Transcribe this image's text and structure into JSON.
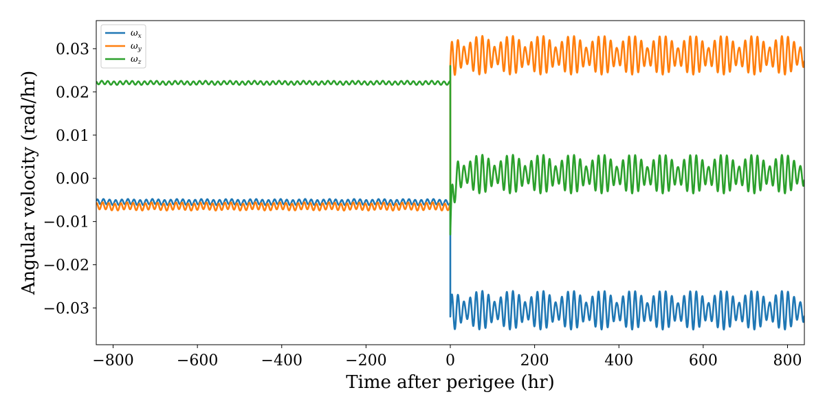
{
  "chart_data": {
    "type": "line",
    "xlabel": "Time after perigee (hr)",
    "ylabel": "Angular velocity (rad/hr)",
    "xlim": [
      -840,
      840
    ],
    "ylim": [
      -0.0385,
      0.0365
    ],
    "xticks": [
      -800,
      -600,
      -400,
      -200,
      0,
      200,
      400,
      600,
      800
    ],
    "xtick_labels": [
      "−800",
      "−600",
      "−400",
      "−200",
      "0",
      "200",
      "400",
      "600",
      "800"
    ],
    "yticks": [
      -0.03,
      -0.02,
      -0.01,
      0.0,
      0.01,
      0.02,
      0.03
    ],
    "ytick_labels": [
      "−0.03",
      "−0.02",
      "−0.01",
      "0.00",
      "0.01",
      "0.02",
      "0.03"
    ],
    "grid": false,
    "legend_position": "top-left",
    "series": [
      {
        "name": "ω",
        "subscript": "x",
        "color": "#1f77b4",
        "before_perigee": {
          "mean": -0.0055,
          "amplitude": 0.0006,
          "period_hr": 14.5
        },
        "after_perigee": {
          "mean": -0.0305,
          "amplitude": 0.0045,
          "period_hr": 14.5,
          "beat_period_hr": 72
        },
        "points": [
          [
            -840,
            -0.0058
          ],
          [
            -600,
            -0.0054
          ],
          [
            -400,
            -0.0055
          ],
          [
            -200,
            -0.0054
          ],
          [
            -5,
            -0.0055
          ],
          [
            0,
            -0.0055
          ],
          [
            0,
            -0.032
          ],
          [
            200,
            -0.0305
          ],
          [
            400,
            -0.0305
          ],
          [
            600,
            -0.0305
          ],
          [
            840,
            -0.035
          ]
        ]
      },
      {
        "name": "ω",
        "subscript": "y",
        "color": "#ff7f0e",
        "before_perigee": {
          "mean": -0.0065,
          "amplitude": 0.0008,
          "period_hr": 14.5
        },
        "after_perigee": {
          "mean": 0.0285,
          "amplitude": 0.0045,
          "period_hr": 14.5,
          "beat_period_hr": 72
        },
        "points": [
          [
            -840,
            -0.007
          ],
          [
            -600,
            -0.0065
          ],
          [
            -400,
            -0.0065
          ],
          [
            -200,
            -0.0065
          ],
          [
            -5,
            -0.0065
          ],
          [
            0,
            -0.0065
          ],
          [
            0,
            0.026
          ],
          [
            200,
            0.0285
          ],
          [
            400,
            0.0285
          ],
          [
            600,
            0.0285
          ],
          [
            840,
            0.023
          ]
        ]
      },
      {
        "name": "ω",
        "subscript": "z",
        "color": "#2ca02c",
        "before_perigee": {
          "mean": 0.0221,
          "amplitude": 0.0004,
          "period_hr": 14.5
        },
        "after_perigee": {
          "mean": 0.001,
          "amplitude": 0.0045,
          "period_hr": 14.5,
          "beat_period_hr": 72
        },
        "points": [
          [
            -840,
            0.022
          ],
          [
            -600,
            0.0222
          ],
          [
            -400,
            0.0221
          ],
          [
            -200,
            0.0221
          ],
          [
            -5,
            0.0221
          ],
          [
            0,
            0.026
          ],
          [
            0,
            -0.013
          ],
          [
            200,
            0.001
          ],
          [
            400,
            0.001
          ],
          [
            600,
            0.001
          ],
          [
            840,
            -0.0055
          ]
        ]
      }
    ]
  }
}
